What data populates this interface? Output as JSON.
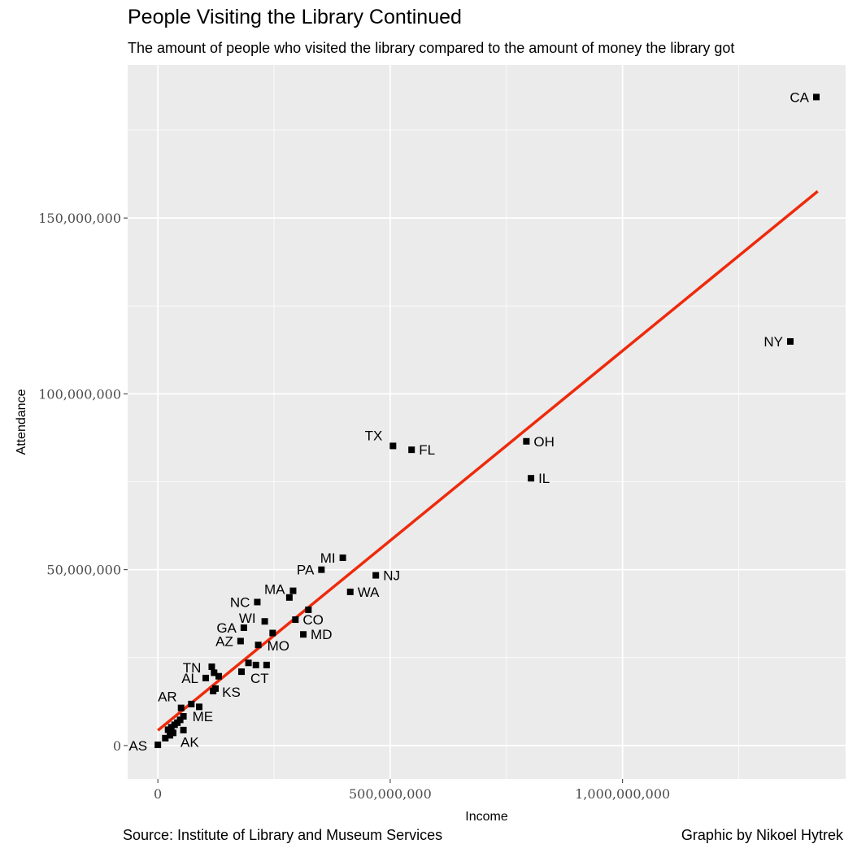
{
  "chart_data": {
    "type": "scatter",
    "title": "People Visiting the Library Continued",
    "subtitle": "The amount of people who visited the library compared to the amount of money the library got",
    "xlabel": "Income",
    "ylabel": "Attendance",
    "caption_left": "Source: Institute of Library and Museum Services",
    "caption_right": "Graphic by Nikoel Hytrek",
    "xlim": [
      -65000000,
      1480000000
    ],
    "ylim": [
      -9500000,
      193500000
    ],
    "x_ticks": [
      0,
      500000000,
      1000000000
    ],
    "x_tick_labels": [
      "0",
      "500,000,000",
      "1,000,000,000"
    ],
    "y_ticks": [
      0,
      50000000,
      100000000,
      150000000
    ],
    "y_tick_labels": [
      "0",
      "50,000,000",
      "100,000,000",
      "150,000,000"
    ],
    "grid": true,
    "colors": {
      "panel": "#ebebeb",
      "grid": "#ffffff",
      "points": "#000000",
      "trend_line": "#ee2a0c"
    },
    "trend_line": {
      "x": [
        0,
        1420000000
      ],
      "y": [
        4300000,
        157600000
      ]
    },
    "points": [
      {
        "label": "CA",
        "x": 1417000000,
        "y": 184400000
      },
      {
        "label": "NY",
        "x": 1361000000,
        "y": 114900000
      },
      {
        "label": "OH",
        "x": 793000000,
        "y": 86500000
      },
      {
        "label": "IL",
        "x": 803000000,
        "y": 76000000
      },
      {
        "label": "TX",
        "x": 506000000,
        "y": 85200000
      },
      {
        "label": "FL",
        "x": 546000000,
        "y": 84100000
      },
      {
        "label": "MI",
        "x": 398000000,
        "y": 53400000
      },
      {
        "label": "PA",
        "x": 352000000,
        "y": 50000000
      },
      {
        "label": "NJ",
        "x": 469000000,
        "y": 48400000
      },
      {
        "label": "WA",
        "x": 414000000,
        "y": 43700000
      },
      {
        "label": "MA",
        "x": 291000000,
        "y": 44000000
      },
      {
        "label": "",
        "x": 283000000,
        "y": 42100000
      },
      {
        "label": "NC",
        "x": 214000000,
        "y": 40800000
      },
      {
        "label": "",
        "x": 324000000,
        "y": 38600000
      },
      {
        "label": "CO",
        "x": 296000000,
        "y": 35800000
      },
      {
        "label": "WI",
        "x": 230000000,
        "y": 35300000
      },
      {
        "label": "GA",
        "x": 185000000,
        "y": 33500000
      },
      {
        "label": "",
        "x": 247000000,
        "y": 32000000
      },
      {
        "label": "MD",
        "x": 313000000,
        "y": 31600000
      },
      {
        "label": "AZ",
        "x": 178000000,
        "y": 29700000
      },
      {
        "label": "MO",
        "x": 216000000,
        "y": 28600000
      },
      {
        "label": "",
        "x": 195000000,
        "y": 23500000
      },
      {
        "label": "",
        "x": 211000000,
        "y": 22900000
      },
      {
        "label": "",
        "x": 234000000,
        "y": 22900000
      },
      {
        "label": "TN",
        "x": 116000000,
        "y": 22400000
      },
      {
        "label": "CT",
        "x": 180000000,
        "y": 21000000
      },
      {
        "label": "",
        "x": 121000000,
        "y": 20700000
      },
      {
        "label": "",
        "x": 131000000,
        "y": 19700000
      },
      {
        "label": "AL",
        "x": 103000000,
        "y": 19200000
      },
      {
        "label": "KS",
        "x": 119000000,
        "y": 15500000
      },
      {
        "label": "",
        "x": 124000000,
        "y": 16200000
      },
      {
        "label": "AR",
        "x": 50000000,
        "y": 10700000
      },
      {
        "label": "",
        "x": 72000000,
        "y": 11800000
      },
      {
        "label": "",
        "x": 89000000,
        "y": 11000000
      },
      {
        "label": "ME",
        "x": 55000000,
        "y": 8300000
      },
      {
        "label": "",
        "x": 48000000,
        "y": 7300000
      },
      {
        "label": "",
        "x": 42000000,
        "y": 6500000
      },
      {
        "label": "",
        "x": 36000000,
        "y": 5900000
      },
      {
        "label": "",
        "x": 29000000,
        "y": 5200000
      },
      {
        "label": "",
        "x": 22000000,
        "y": 4500000
      },
      {
        "label": "",
        "x": 55000000,
        "y": 4400000
      },
      {
        "label": "",
        "x": 33000000,
        "y": 3600000
      },
      {
        "label": "AK",
        "x": 26000000,
        "y": 2900000
      },
      {
        "label": "",
        "x": 16000000,
        "y": 2100000
      },
      {
        "label": "AS",
        "x": 0,
        "y": 200000
      }
    ]
  }
}
